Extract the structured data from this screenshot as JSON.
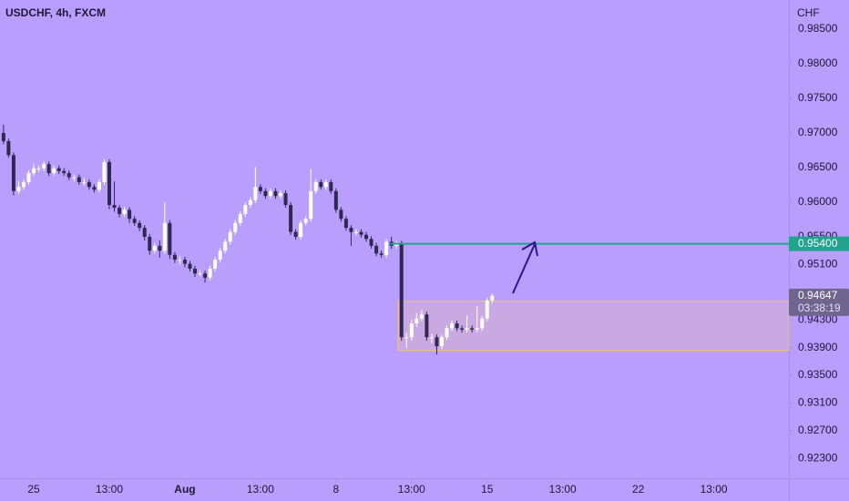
{
  "chart_data": {
    "type": "candlestick",
    "title": "USDCHF, 4h, FXCM",
    "currency": "CHF",
    "open": [
      0.97,
      0.9688,
      0.9668,
      0.9616,
      0.9622,
      0.9629,
      0.9642,
      0.9649,
      0.9649,
      0.9655,
      0.9642,
      0.9649,
      0.9645,
      0.9642,
      0.9636,
      0.9636,
      0.9629,
      0.9629,
      0.9622,
      0.9618,
      0.9629,
      0.9658,
      0.9596,
      0.9592,
      0.9583,
      0.9589,
      0.9576,
      0.957,
      0.9563,
      0.955,
      0.953,
      0.9537,
      0.953,
      0.957,
      0.9524,
      0.9517,
      0.9517,
      0.9511,
      0.9504,
      0.9497,
      0.9497,
      0.9491,
      0.9504,
      0.9517,
      0.953,
      0.9543,
      0.9557,
      0.957,
      0.9583,
      0.9596,
      0.9603,
      0.9622,
      0.9616,
      0.9609,
      0.9616,
      0.9609,
      0.9613,
      0.9596,
      0.9557,
      0.955,
      0.957,
      0.9576,
      0.9616,
      0.9629,
      0.9622,
      0.9629,
      0.9616,
      0.9589,
      0.9576,
      0.9563,
      0.9557,
      0.9557,
      0.9553,
      0.9547,
      0.9537,
      0.9526,
      0.9524,
      0.9543,
      0.9537,
      0.954,
      0.9405,
      0.9405,
      0.9425,
      0.9432,
      0.9438,
      0.9405,
      0.9405,
      0.9392,
      0.9405,
      0.9418,
      0.9425,
      0.9418,
      0.9416,
      0.9418,
      0.9416,
      0.9418,
      0.9432,
      0.9458
    ],
    "high": [
      0.9712,
      0.9692,
      0.9672,
      0.963,
      0.9633,
      0.9646,
      0.9656,
      0.9653,
      0.9659,
      0.9659,
      0.9653,
      0.9653,
      0.9649,
      0.9646,
      0.964,
      0.964,
      0.9635,
      0.9633,
      0.9626,
      0.9633,
      0.9662,
      0.9662,
      0.963,
      0.9596,
      0.9593,
      0.9593,
      0.958,
      0.9574,
      0.9567,
      0.9554,
      0.9541,
      0.9545,
      0.96,
      0.9574,
      0.9528,
      0.9522,
      0.9521,
      0.9515,
      0.9508,
      0.9502,
      0.9501,
      0.9508,
      0.9521,
      0.9534,
      0.9547,
      0.9561,
      0.9574,
      0.9587,
      0.96,
      0.9607,
      0.9651,
      0.9626,
      0.962,
      0.962,
      0.962,
      0.9617,
      0.9617,
      0.96,
      0.9561,
      0.9574,
      0.958,
      0.9648,
      0.9633,
      0.9633,
      0.9633,
      0.9633,
      0.962,
      0.9593,
      0.958,
      0.9567,
      0.9561,
      0.9561,
      0.9557,
      0.9551,
      0.9541,
      0.953,
      0.9547,
      0.955,
      0.9544,
      0.9544,
      0.9412,
      0.943,
      0.944,
      0.9444,
      0.9442,
      0.941,
      0.9409,
      0.9409,
      0.9422,
      0.9429,
      0.9429,
      0.9422,
      0.9436,
      0.9422,
      0.945,
      0.9436,
      0.9462,
      0.9468
    ],
    "low": [
      0.9684,
      0.9664,
      0.961,
      0.9612,
      0.9618,
      0.9625,
      0.9638,
      0.9644,
      0.9645,
      0.9638,
      0.9638,
      0.9641,
      0.9638,
      0.9632,
      0.963,
      0.9625,
      0.9624,
      0.9618,
      0.9614,
      0.9614,
      0.9625,
      0.959,
      0.9586,
      0.9578,
      0.9579,
      0.957,
      0.9566,
      0.9558,
      0.9545,
      0.9524,
      0.9526,
      0.952,
      0.9526,
      0.9518,
      0.9512,
      0.951,
      0.9506,
      0.95,
      0.9492,
      0.9493,
      0.9484,
      0.9487,
      0.95,
      0.9513,
      0.9526,
      0.9539,
      0.9553,
      0.9566,
      0.9579,
      0.9592,
      0.9599,
      0.9612,
      0.9605,
      0.9605,
      0.9605,
      0.9605,
      0.9592,
      0.9553,
      0.9546,
      0.9546,
      0.9566,
      0.9572,
      0.9612,
      0.9618,
      0.9618,
      0.9612,
      0.9585,
      0.9572,
      0.9559,
      0.9537,
      0.9552,
      0.9549,
      0.9543,
      0.9533,
      0.9522,
      0.952,
      0.952,
      0.9533,
      0.9533,
      0.94,
      0.939,
      0.94,
      0.942,
      0.9428,
      0.94,
      0.9396,
      0.938,
      0.9388,
      0.9401,
      0.9414,
      0.9414,
      0.9412,
      0.9412,
      0.9412,
      0.9412,
      0.9414,
      0.9428,
      0.9454
    ],
    "close": [
      0.9688,
      0.9668,
      0.9616,
      0.9622,
      0.9629,
      0.9642,
      0.9649,
      0.9649,
      0.9655,
      0.9642,
      0.9649,
      0.9645,
      0.9642,
      0.9636,
      0.9636,
      0.9629,
      0.9629,
      0.9622,
      0.9618,
      0.9629,
      0.9658,
      0.9596,
      0.9592,
      0.9583,
      0.9589,
      0.9576,
      0.957,
      0.9563,
      0.955,
      0.953,
      0.9537,
      0.953,
      0.957,
      0.9524,
      0.9517,
      0.9517,
      0.9511,
      0.9504,
      0.9497,
      0.9497,
      0.9491,
      0.9504,
      0.9517,
      0.953,
      0.9543,
      0.9557,
      0.957,
      0.9583,
      0.9596,
      0.9603,
      0.9622,
      0.9616,
      0.9609,
      0.9616,
      0.9609,
      0.9613,
      0.9596,
      0.9557,
      0.955,
      0.957,
      0.9576,
      0.9616,
      0.9629,
      0.9622,
      0.9629,
      0.9616,
      0.9589,
      0.9576,
      0.9563,
      0.9557,
      0.9557,
      0.9553,
      0.9547,
      0.9537,
      0.9526,
      0.9524,
      0.9543,
      0.9537,
      0.954,
      0.9405,
      0.9405,
      0.9425,
      0.9432,
      0.9438,
      0.9405,
      0.9405,
      0.9392,
      0.9405,
      0.9418,
      0.9425,
      0.9418,
      0.9416,
      0.9418,
      0.9416,
      0.9418,
      0.9432,
      0.9458,
      0.9465
    ],
    "up_color": "#ffffff",
    "down_color": "#2f2853",
    "ylim": [
      0.9208,
      0.9892
    ],
    "yticks": [
      {
        "value": 0.985,
        "label": "0.98500"
      },
      {
        "value": 0.98,
        "label": "0.98000"
      },
      {
        "value": 0.975,
        "label": "0.97500"
      },
      {
        "value": 0.97,
        "label": "0.97000"
      },
      {
        "value": 0.965,
        "label": "0.96500"
      },
      {
        "value": 0.96,
        "label": "0.96000"
      },
      {
        "value": 0.955,
        "label": "0.95500"
      },
      {
        "value": 0.951,
        "label": "0.95100"
      },
      {
        "value": 0.943,
        "label": "0.94300"
      },
      {
        "value": 0.939,
        "label": "0.93900"
      },
      {
        "value": 0.935,
        "label": "0.93500"
      },
      {
        "value": 0.931,
        "label": "0.93100"
      },
      {
        "value": 0.927,
        "label": "0.92700"
      },
      {
        "value": 0.923,
        "label": "0.92300"
      }
    ],
    "xlim": [
      -0.7,
      155.9
    ],
    "xticks": [
      {
        "value": 6,
        "label": "25"
      },
      {
        "value": 21,
        "label": "13:00"
      },
      {
        "value": 36,
        "label": "Aug"
      },
      {
        "value": 51,
        "label": "13:00"
      },
      {
        "value": 66,
        "label": "8"
      },
      {
        "value": 81,
        "label": "13:00"
      },
      {
        "value": 96,
        "label": "15"
      },
      {
        "value": 111,
        "label": "13:00"
      },
      {
        "value": 126,
        "label": "22"
      },
      {
        "value": 141,
        "label": "13:00"
      }
    ],
    "zone": {
      "start": 78.3,
      "top": 0.9457,
      "bottom": 0.9386,
      "fill": "#caa9e2",
      "border": "#f0c170"
    },
    "level": {
      "start": 76.5,
      "value": 0.954,
      "label": "0.95400",
      "color": "#22a38e"
    },
    "last": {
      "value": 0.94647,
      "label": "0.94647",
      "countdown": "03:38:19",
      "color": "#6f6690"
    }
  }
}
